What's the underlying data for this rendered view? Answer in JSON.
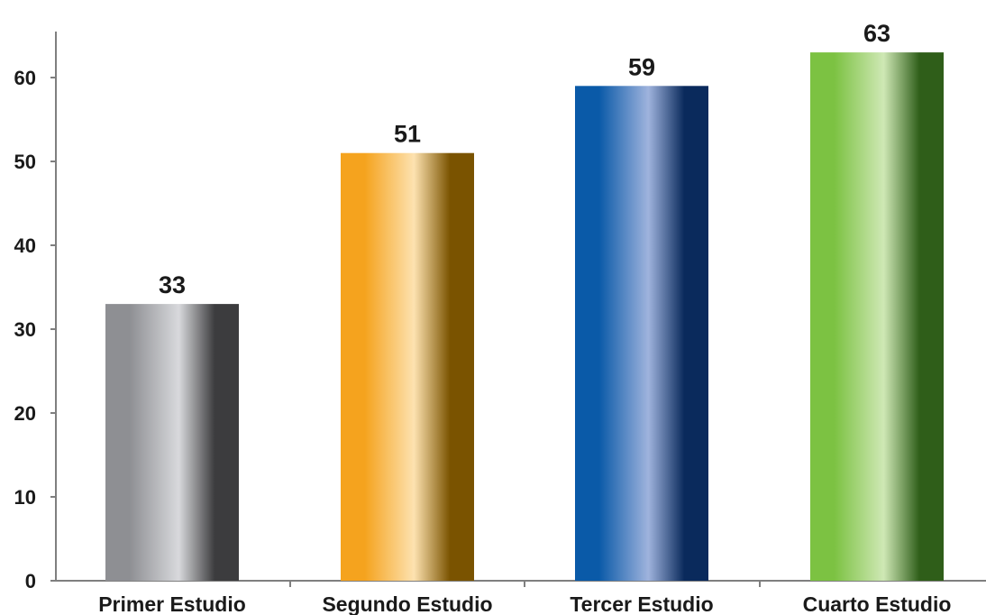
{
  "chart_data": {
    "type": "bar",
    "title": "",
    "xlabel": "",
    "ylabel": "",
    "categories": [
      "Primer Estudio",
      "Segundo Estudio",
      "Tercer Estudio",
      "Cuarto Estudio"
    ],
    "values": [
      33,
      51,
      59,
      63
    ],
    "data_labels": [
      "33",
      "51",
      "59",
      "63"
    ],
    "y_ticks": [
      "0",
      "10",
      "20",
      "30",
      "40",
      "50",
      "60"
    ],
    "ylim": [
      0,
      65
    ],
    "grid": false,
    "legend": "none",
    "bar_colors": [
      {
        "name": "gray",
        "edge": "#8e8f93",
        "light": "#d8d9dc",
        "dark": "#3c3c3e"
      },
      {
        "name": "orange",
        "edge": "#f5a31e",
        "light": "#fde2b0",
        "dark": "#7a5300"
      },
      {
        "name": "blue",
        "edge": "#0a5aa8",
        "light": "#9fb3dd",
        "dark": "#0a2a5c"
      },
      {
        "name": "green",
        "edge": "#7cc242",
        "light": "#cfe8b5",
        "dark": "#2f5e19"
      }
    ]
  }
}
